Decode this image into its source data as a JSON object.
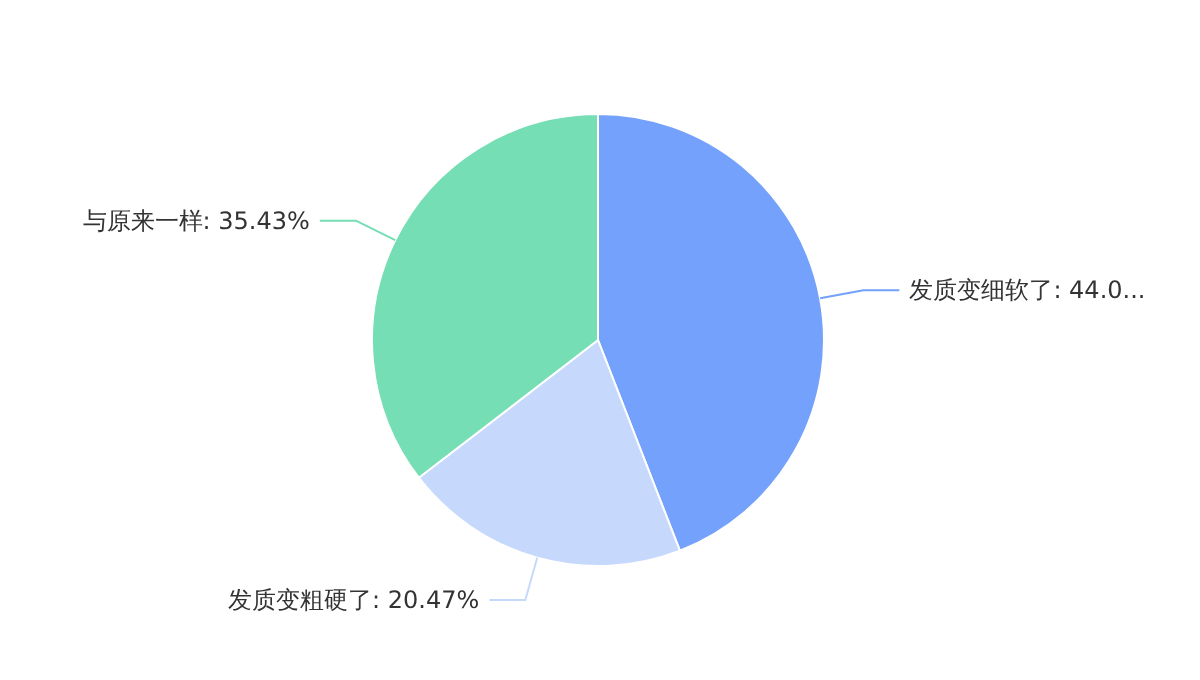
{
  "chart_data": {
    "type": "pie",
    "categories": [
      "发质变细软了",
      "发质变粗硬了",
      "与原来一样"
    ],
    "values": [
      44.1,
      20.47,
      35.43
    ],
    "value_labels": [
      "44.0...",
      "20.47%",
      "35.43%"
    ],
    "colors": [
      "#73a1fb",
      "#c6d9fd",
      "#75deb4"
    ]
  }
}
